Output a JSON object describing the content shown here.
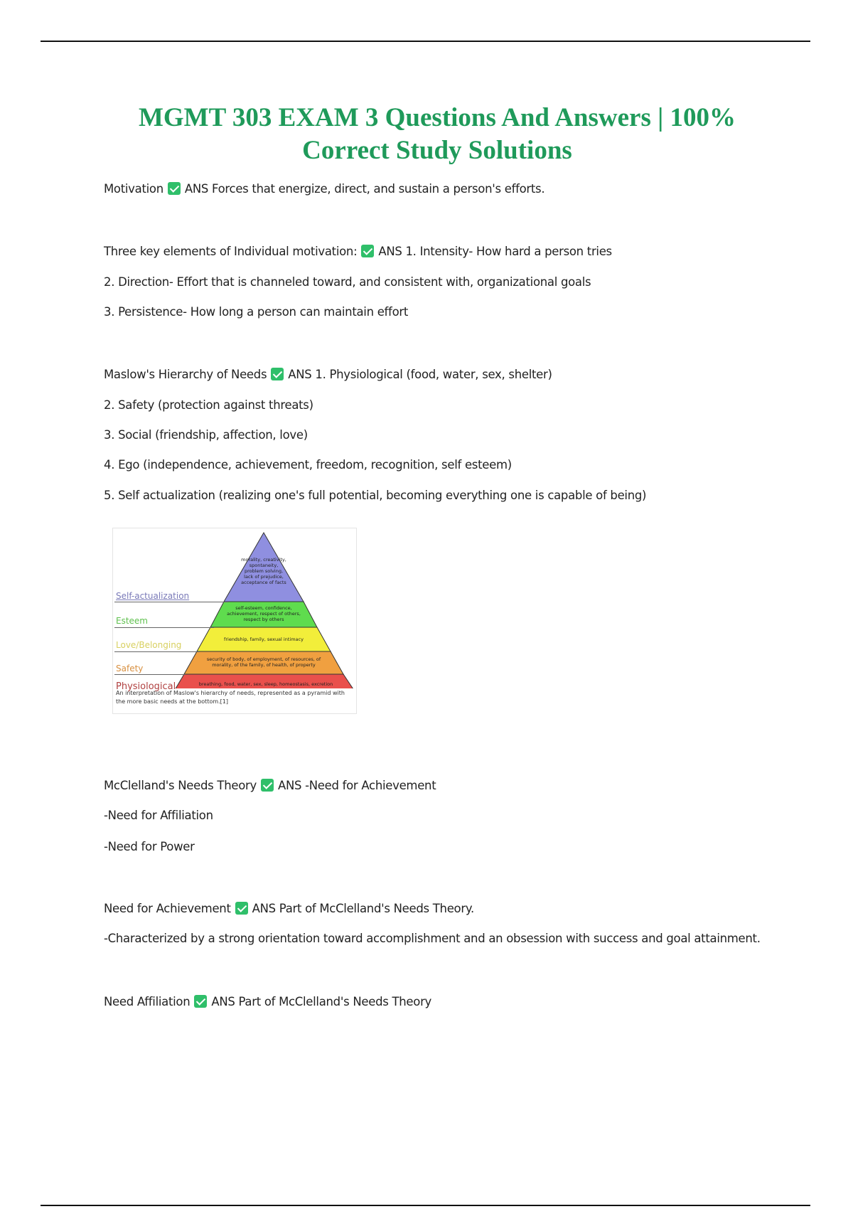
{
  "title": {
    "line1": "MGMT 303 EXAM 3 Questions And Answers | 100%",
    "line2": "Correct Study Solutions"
  },
  "check_icon": "green-checkbox-icon",
  "accent_color": "#1f9a5a",
  "qa": [
    {
      "term": "Motivation",
      "answer": "ANS Forces that energize, direct, and sustain a person's efforts."
    },
    {
      "term": "Three key elements of Individual motivation:",
      "answer": "ANS 1. Intensity- How hard a person tries",
      "more": [
        "2. Direction- Effort that is channeled toward, and consistent with, organizational goals",
        "3. Persistence- How long a person can maintain effort"
      ]
    },
    {
      "term": "Maslow's Hierarchy of Needs",
      "answer": "ANS 1. Physiological (food, water, sex, shelter)",
      "more": [
        "2. Safety (protection against threats)",
        "3. Social (friendship, affection, love)",
        "4. Ego (independence, achievement, freedom, recognition, self esteem)",
        "5. Self actualization (realizing one's full potential, becoming everything one is capable of being)"
      ]
    },
    {
      "term": "McClelland's Needs Theory",
      "answer": "ANS -Need for Achievement",
      "more": [
        "-Need for Affiliation",
        "-Need for Power"
      ]
    },
    {
      "term": "Need for Achievement",
      "answer": "ANS Part of McClelland's Needs Theory.",
      "more": [
        "-Characterized by a strong orientation toward accomplishment and an obsession with success and goal attainment."
      ]
    },
    {
      "term": "Need Affiliation",
      "answer": "ANS Part of McClelland's Needs Theory"
    }
  ],
  "figure": {
    "levels": [
      "Self-actualization",
      "Esteem",
      "Love/Belonging",
      "Safety",
      "Physiological"
    ],
    "tiers": [
      "morality, creativity, spontaneity, problem solving, lack of prejudice, acceptance of facts",
      "self-esteem, confidence, achievement, respect of others, respect by others",
      "friendship, family, sexual intimacy",
      "security of body, of employment, of resources, of morality, of the family, of health, of property",
      "breathing, food, water, sex, sleep, homeostasis, excretion"
    ],
    "caption": "An interpretation of Maslow's hierarchy of needs, represented as a pyramid with the more basic needs at the bottom.[1]"
  }
}
